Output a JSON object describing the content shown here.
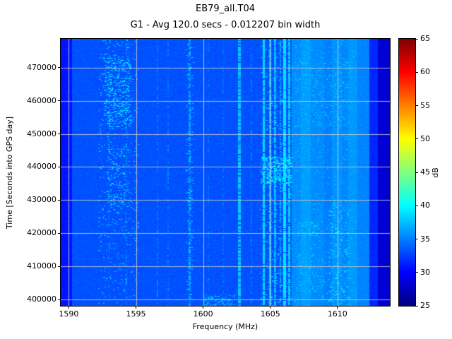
{
  "chart_data": {
    "type": "heatmap",
    "title": "EB79_all.T04",
    "subtitle": "G1 - Avg 120.0 secs - 0.012207 bin width",
    "xlabel": "Frequency (MHz)",
    "ylabel": "Time [Seconds into GPS day]",
    "xlim": [
      1589.4,
      1613.9
    ],
    "ylim": [
      398100,
      478700
    ],
    "xticks": [
      1590,
      1595,
      1600,
      1605,
      1610
    ],
    "yticks": [
      400000,
      410000,
      420000,
      430000,
      440000,
      450000,
      460000,
      470000
    ],
    "grid": true,
    "grid_color": "#cccccc",
    "colorbar": {
      "label": "dB",
      "min": 25,
      "max": 65,
      "ticks": [
        25,
        30,
        35,
        40,
        45,
        50,
        55,
        60,
        65
      ],
      "colormap": "jet"
    },
    "heatmap": {
      "background_db": 33.2,
      "noise_db": 0.6,
      "bands": [
        {
          "x0": 1589.4,
          "x1": 1590.25,
          "db": 30.8
        },
        {
          "x0": 1606.6,
          "x1": 1607.3,
          "db": 35.6
        },
        {
          "x0": 1607.3,
          "x1": 1608.0,
          "db": 36.2
        },
        {
          "x0": 1608.0,
          "x1": 1609.0,
          "db": 35.5
        },
        {
          "x0": 1609.0,
          "x1": 1609.6,
          "db": 35.0
        },
        {
          "x0": 1609.6,
          "x1": 1610.3,
          "db": 35.8
        },
        {
          "x0": 1610.3,
          "x1": 1610.8,
          "db": 35.3
        },
        {
          "x0": 1610.8,
          "x1": 1611.5,
          "db": 36.0
        },
        {
          "x0": 1611.5,
          "x1": 1612.4,
          "db": 35.2
        },
        {
          "x0": 1612.4,
          "x1": 1613.0,
          "db": 31.5
        },
        {
          "x0": 1613.0,
          "x1": 1613.9,
          "db": 28.3
        }
      ],
      "vlines": [
        {
          "x": 1593.0,
          "w": 0.05,
          "db": 36.5,
          "p": 0.3
        },
        {
          "x": 1594.3,
          "w": 0.05,
          "db": 36.5,
          "p": 0.25
        },
        {
          "x": 1596.6,
          "w": 0.05,
          "db": 35.5,
          "p": 0.3
        },
        {
          "x": 1597.4,
          "w": 0.05,
          "db": 35.5,
          "p": 0.25
        },
        {
          "x": 1599.0,
          "w": 0.1,
          "db": 37.0,
          "p": 0.55
        },
        {
          "x": 1600.4,
          "w": 0.05,
          "db": 35.0,
          "p": 0.25
        },
        {
          "x": 1601.5,
          "w": 0.05,
          "db": 35.0,
          "p": 0.25
        },
        {
          "x": 1602.7,
          "w": 0.09,
          "db": 38.0,
          "p": 0.75
        },
        {
          "x": 1603.6,
          "w": 0.05,
          "db": 35.5,
          "p": 0.3
        },
        {
          "x": 1604.5,
          "w": 0.08,
          "db": 38.5,
          "p": 0.9
        },
        {
          "x": 1605.0,
          "w": 0.07,
          "db": 38.0,
          "p": 0.85
        },
        {
          "x": 1605.35,
          "w": 0.06,
          "db": 37.5,
          "p": 0.8
        },
        {
          "x": 1605.75,
          "w": 0.06,
          "db": 37.0,
          "p": 0.6
        },
        {
          "x": 1606.05,
          "w": 0.11,
          "db": 39.0,
          "p": 0.95
        },
        {
          "x": 1606.4,
          "w": 0.07,
          "db": 38.0,
          "p": 0.85
        }
      ],
      "speckles": [
        {
          "x0": 1592.2,
          "x1": 1595.2,
          "y0": 398100,
          "y1": 478700,
          "density": 0.02,
          "db": 37.5
        },
        {
          "x0": 1592.6,
          "x1": 1594.6,
          "y0": 452000,
          "y1": 473000,
          "density": 0.09,
          "db": 38.5
        },
        {
          "x0": 1592.8,
          "x1": 1594.2,
          "y0": 428000,
          "y1": 446000,
          "density": 0.05,
          "db": 38.0
        },
        {
          "x0": 1598.7,
          "x1": 1599.3,
          "y0": 398100,
          "y1": 478700,
          "density": 0.04,
          "db": 37.5
        },
        {
          "x0": 1600.0,
          "x1": 1602.4,
          "y0": 398100,
          "y1": 401500,
          "density": 0.15,
          "db": 36.5
        },
        {
          "x0": 1604.2,
          "x1": 1606.6,
          "y0": 398100,
          "y1": 478700,
          "density": 0.03,
          "db": 37.5
        },
        {
          "x0": 1604.3,
          "x1": 1606.6,
          "y0": 435000,
          "y1": 443000,
          "density": 0.18,
          "db": 38.5
        },
        {
          "x0": 1606.8,
          "x1": 1611.2,
          "y0": 398100,
          "y1": 478700,
          "density": 0.015,
          "db": 37.0
        },
        {
          "x0": 1606.9,
          "x1": 1608.9,
          "y0": 402000,
          "y1": 414000,
          "density": 0.06,
          "db": 36.8
        },
        {
          "x0": 1607.0,
          "x1": 1608.6,
          "y0": 419000,
          "y1": 423500,
          "density": 0.1,
          "db": 37.0
        },
        {
          "x0": 1609.3,
          "x1": 1610.9,
          "y0": 398100,
          "y1": 430000,
          "density": 0.05,
          "db": 38.0
        },
        {
          "x0": 1606.8,
          "x1": 1611.0,
          "y0": 452000,
          "y1": 472000,
          "density": 0.04,
          "db": 37.0
        }
      ]
    }
  }
}
